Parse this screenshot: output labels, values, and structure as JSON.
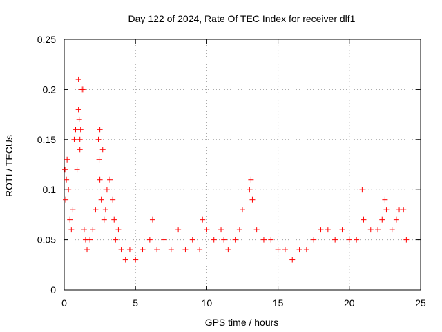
{
  "chart_data": {
    "type": "scatter",
    "title": "Day 122 of 2024, Rate Of TEC Index for receiver dlf1",
    "xlabel": "GPS time / hours",
    "ylabel": "ROTI / TECUs",
    "xlim": [
      0,
      25
    ],
    "ylim": [
      0,
      0.25
    ],
    "x_ticks": [
      0,
      5,
      10,
      15,
      20,
      25
    ],
    "x_tick_labels": [
      "0",
      "5",
      "10",
      "15",
      "20",
      "25"
    ],
    "y_ticks": [
      0,
      0.05,
      0.1,
      0.15,
      0.2,
      0.25
    ],
    "y_tick_labels": [
      "0",
      "0.05",
      "0.1",
      "0.15",
      "0.2",
      "0.25"
    ],
    "grid": true,
    "marker": "+",
    "color": "#ff0000",
    "series": [
      {
        "name": "ROTI",
        "x": [
          0.05,
          0.1,
          0.15,
          0.2,
          0.3,
          0.4,
          0.5,
          0.6,
          0.7,
          0.8,
          0.9,
          1.0,
          1.0,
          1.05,
          1.1,
          1.1,
          1.15,
          1.2,
          1.3,
          1.4,
          1.5,
          1.6,
          1.8,
          2.0,
          2.2,
          2.4,
          2.45,
          2.5,
          2.5,
          2.6,
          2.7,
          2.8,
          2.9,
          3.0,
          3.2,
          3.4,
          3.5,
          3.6,
          3.8,
          4.0,
          4.3,
          4.6,
          5.0,
          5.5,
          6.0,
          6.2,
          6.5,
          7.0,
          7.5,
          8.0,
          8.5,
          9.0,
          9.5,
          9.7,
          10.0,
          10.5,
          11.0,
          11.2,
          11.5,
          12.0,
          12.3,
          12.5,
          13.0,
          13.1,
          13.2,
          13.5,
          14.0,
          14.5,
          15.0,
          15.5,
          16.0,
          16.5,
          17.0,
          17.5,
          18.0,
          18.5,
          19.0,
          19.5,
          20.0,
          20.5,
          20.9,
          21.0,
          21.5,
          22.0,
          22.3,
          22.5,
          22.6,
          23.0,
          23.3,
          23.5,
          23.8,
          24.0
        ],
        "y": [
          0.12,
          0.09,
          0.11,
          0.13,
          0.1,
          0.07,
          0.06,
          0.08,
          0.15,
          0.16,
          0.12,
          0.21,
          0.18,
          0.17,
          0.15,
          0.14,
          0.16,
          0.2,
          0.2,
          0.06,
          0.05,
          0.04,
          0.05,
          0.06,
          0.08,
          0.15,
          0.13,
          0.11,
          0.16,
          0.09,
          0.14,
          0.07,
          0.08,
          0.1,
          0.11,
          0.09,
          0.07,
          0.05,
          0.06,
          0.04,
          0.03,
          0.04,
          0.03,
          0.04,
          0.05,
          0.07,
          0.04,
          0.05,
          0.04,
          0.06,
          0.04,
          0.05,
          0.04,
          0.07,
          0.06,
          0.05,
          0.06,
          0.05,
          0.04,
          0.05,
          0.06,
          0.08,
          0.1,
          0.11,
          0.09,
          0.06,
          0.05,
          0.05,
          0.04,
          0.04,
          0.03,
          0.04,
          0.04,
          0.05,
          0.06,
          0.06,
          0.05,
          0.06,
          0.05,
          0.05,
          0.1,
          0.07,
          0.06,
          0.06,
          0.07,
          0.09,
          0.08,
          0.06,
          0.07,
          0.08,
          0.08,
          0.05
        ]
      }
    ]
  }
}
